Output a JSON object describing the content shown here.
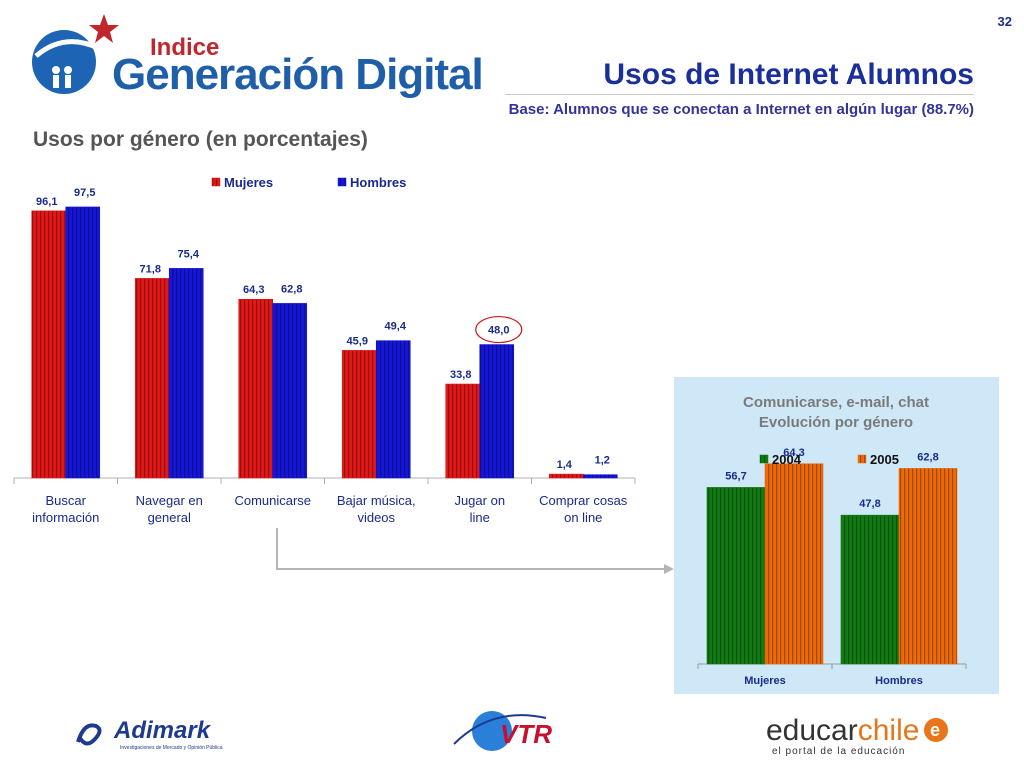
{
  "page_number": "32",
  "header": {
    "logo_indice": "Indice",
    "logo_generacion": "Generación Digital",
    "title": "Usos de Internet Alumnos",
    "subtitle": "Base: Alumnos que se conectan a Internet en algún lugar (88.7%)"
  },
  "section_title": "Usos por género (en porcentajes)",
  "colors": {
    "mujeres": "#e01818",
    "hombres": "#1616d8",
    "y2004": "#127a12",
    "y2005": "#ee6a06",
    "label_text": "#1a2a8c",
    "highlight_circle": "#cc1a1a",
    "inset_bg": "#cfe8f8"
  },
  "chart_data": [
    {
      "type": "bar",
      "categories": [
        "Buscar información",
        "Navegar en general",
        "Comunicarse",
        "Bajar música, videos",
        "Jugar on line",
        "Comprar cosas on line"
      ],
      "series": [
        {
          "name": "Mujeres",
          "values": [
            96.1,
            71.8,
            64.3,
            45.9,
            33.8,
            1.4
          ],
          "labels": [
            "96,1",
            "71,8",
            "64,3",
            "45,9",
            "33,8",
            "1,4"
          ]
        },
        {
          "name": "Hombres",
          "values": [
            97.5,
            75.4,
            62.8,
            49.4,
            48.0,
            1.2
          ],
          "labels": [
            "97,5",
            "75,4",
            "62,8",
            "49,4",
            "48,0",
            "1,2"
          ]
        }
      ],
      "highlighted": {
        "series": "Hombres",
        "category": "Jugar on line"
      },
      "legend": "top-center",
      "ylim": [
        0,
        100
      ],
      "grid": false
    },
    {
      "type": "bar",
      "title": "Comunicarse, e-mail, chat",
      "subtitle": "Evolución por género",
      "categories": [
        "Mujeres",
        "Hombres"
      ],
      "series": [
        {
          "name": "2004",
          "values": [
            56.7,
            47.8
          ],
          "labels": [
            "56,7",
            "47,8"
          ]
        },
        {
          "name": "2005",
          "values": [
            64.3,
            62.8
          ],
          "labels": [
            "64,3",
            "62,8"
          ]
        }
      ],
      "legend": "top-center",
      "ylim": [
        0,
        70
      ],
      "grid": false
    }
  ],
  "footer": {
    "adimark": "Adimark",
    "adimark_tagline": "Investigaciones de Mercado y Opinión Pública",
    "vtr": "VTR",
    "educar_main": "educar",
    "educar_chile": "chile",
    "educar_tagline": "el portal de la educación"
  }
}
